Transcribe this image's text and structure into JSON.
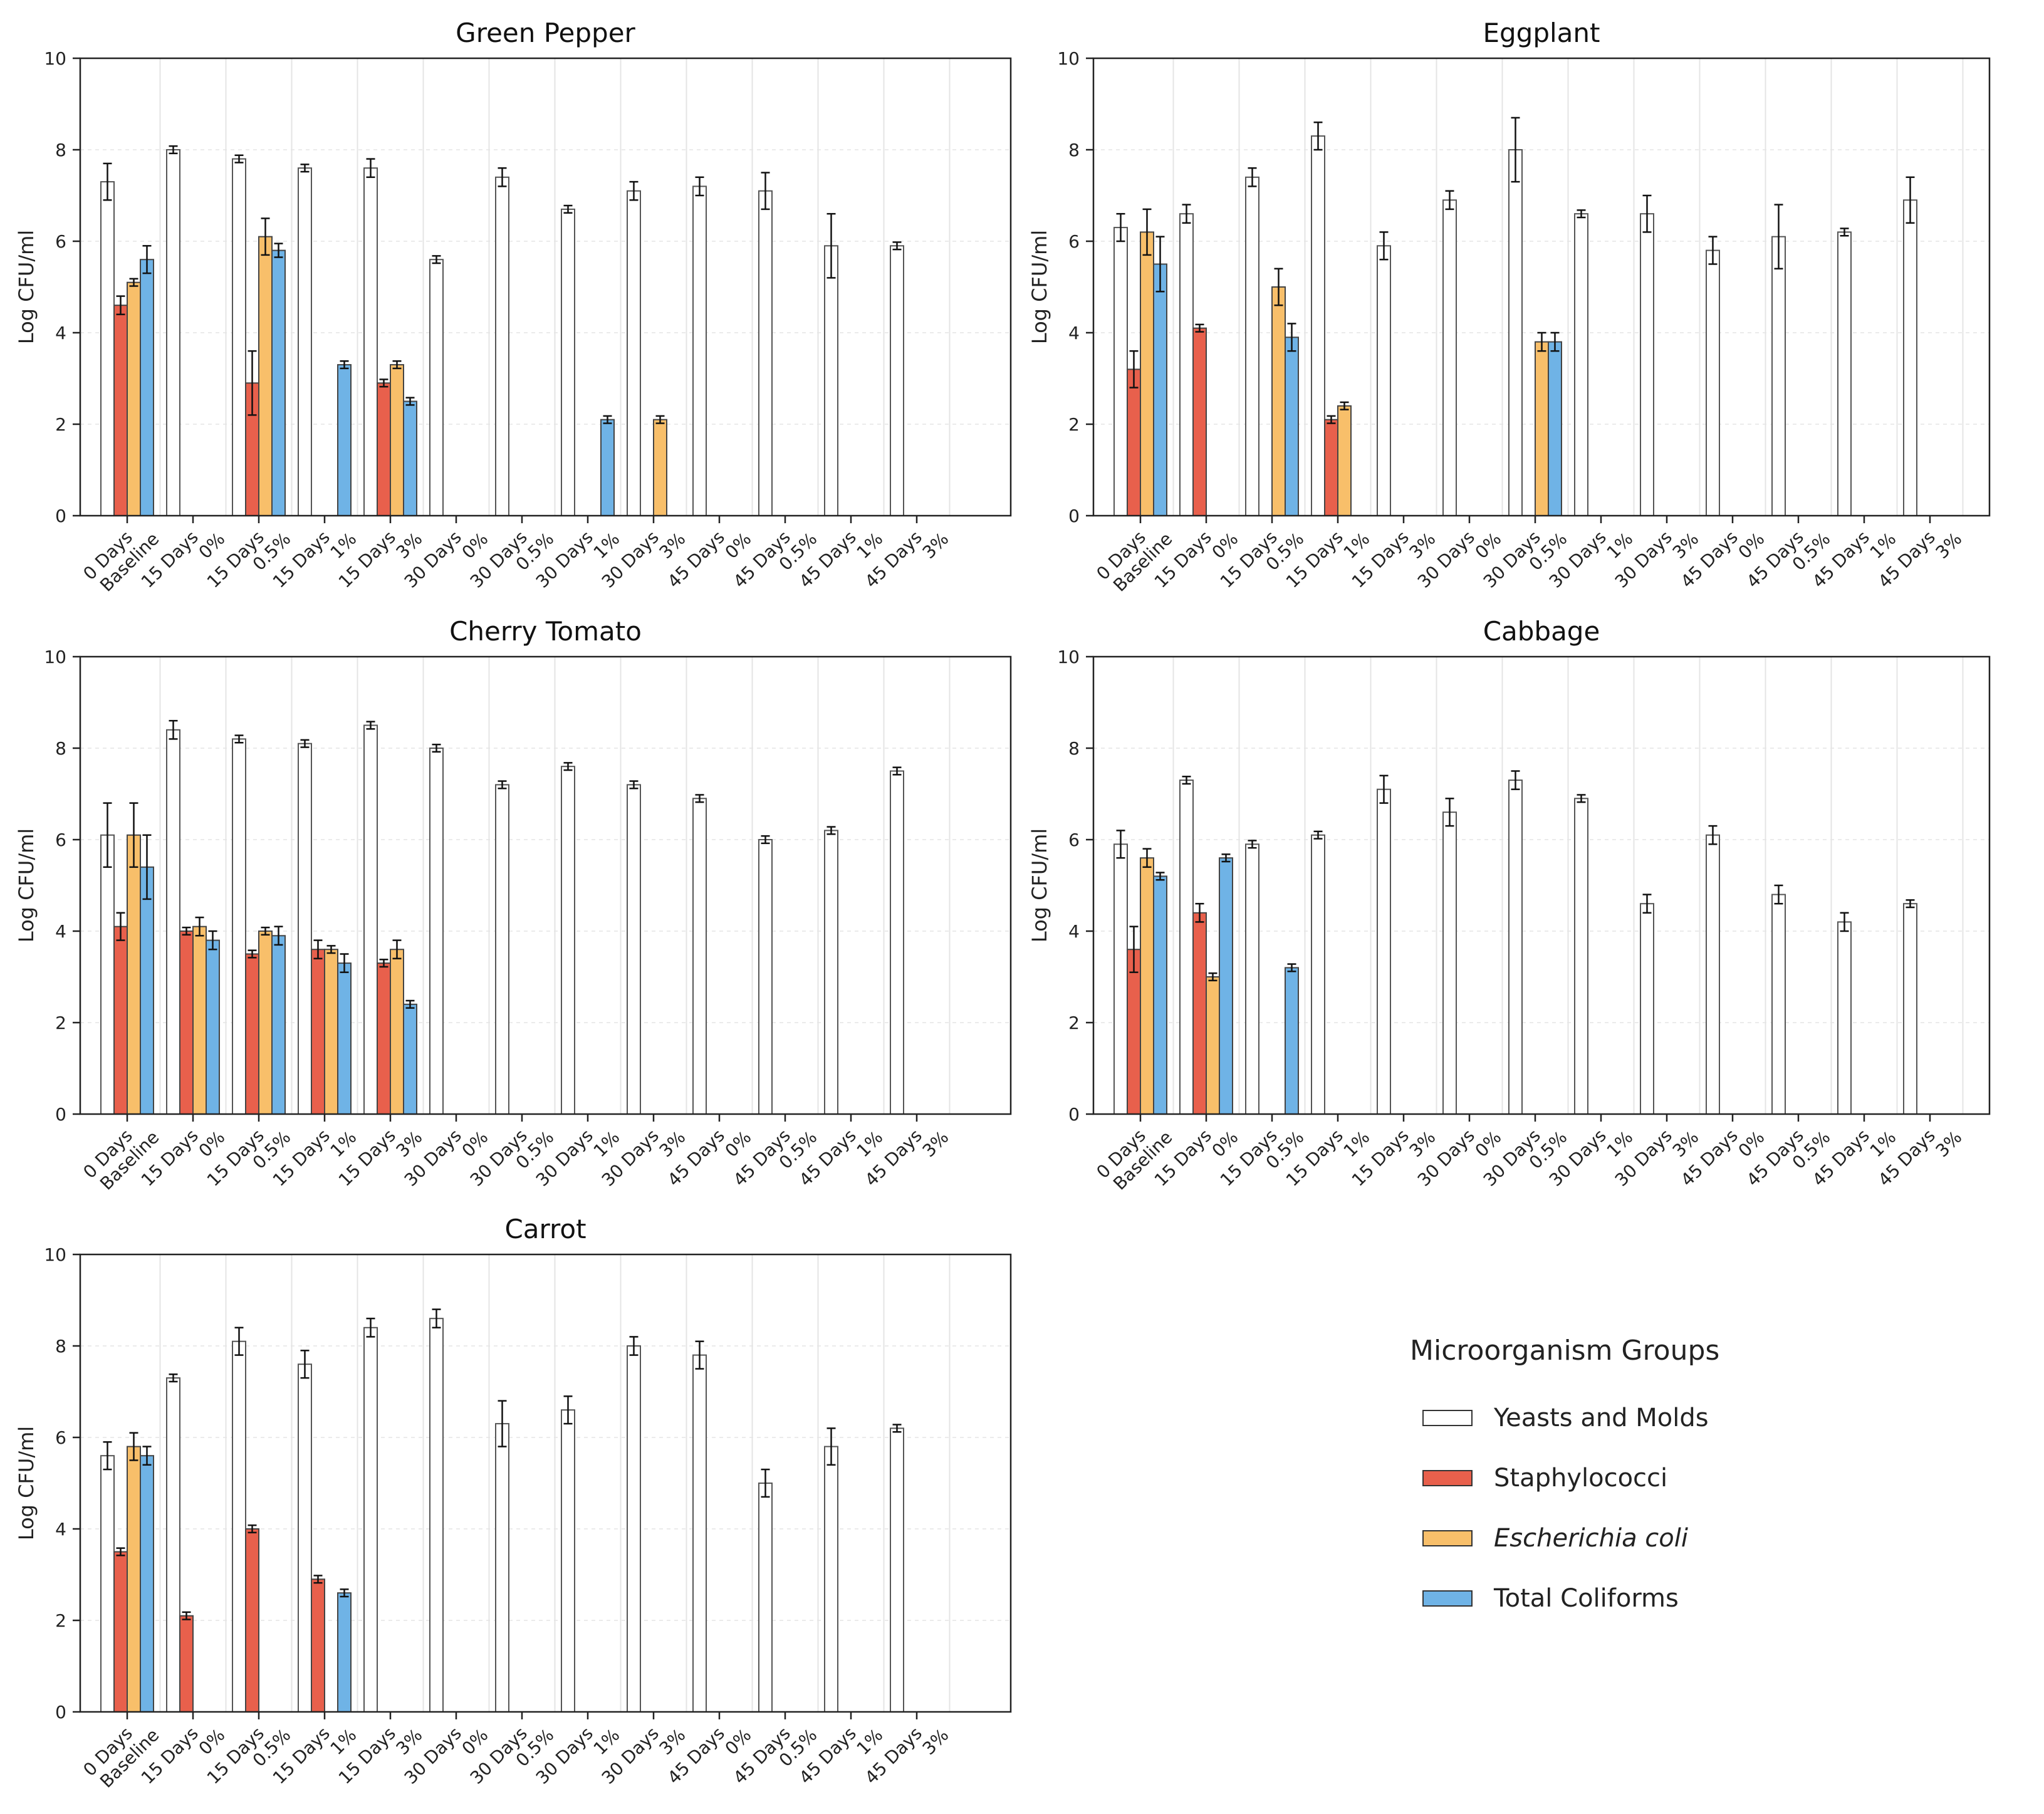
{
  "legend": {
    "title": "Microorganism Groups",
    "items": [
      {
        "key": "ym",
        "label": "Yeasts and Molds",
        "color": "#ffffff",
        "italic": false
      },
      {
        "key": "st",
        "label": "Staphylococci",
        "color": "#e8604c",
        "italic": false
      },
      {
        "key": "ec",
        "label": "Escherichia coli",
        "color": "#f8bf6a",
        "italic": true
      },
      {
        "key": "tc",
        "label": "Total Coliforms",
        "color": "#6fb3e6",
        "italic": false
      }
    ]
  },
  "chart_data": [
    {
      "type": "bar",
      "title": "Green Pepper",
      "ylabel": "Log CFU/ml",
      "ylim": [
        0,
        10
      ],
      "yticks": [
        0,
        2,
        4,
        6,
        8,
        10
      ],
      "categories": [
        "0 Days Baseline",
        "15 Days 0%",
        "15 Days 0.5%",
        "15 Days 1%",
        "15 Days 3%",
        "30 Days 0%",
        "30 Days 0.5%",
        "30 Days 1%",
        "30 Days 3%",
        "45 Days 0%",
        "45 Days 0.5%",
        "45 Days 1%",
        "45 Days 3%"
      ],
      "tick_lines": [
        [
          "0 Days",
          "Baseline"
        ],
        [
          "15 Days",
          "0%"
        ],
        [
          "15 Days",
          "0.5%"
        ],
        [
          "15 Days",
          "1%"
        ],
        [
          "15 Days",
          "3%"
        ],
        [
          "30 Days",
          "0%"
        ],
        [
          "30 Days",
          "0.5%"
        ],
        [
          "30 Days",
          "1%"
        ],
        [
          "30 Days",
          "3%"
        ],
        [
          "45 Days",
          "0%"
        ],
        [
          "45 Days",
          "0.5%"
        ],
        [
          "45 Days",
          "1%"
        ],
        [
          "45 Days",
          "3%"
        ]
      ],
      "series": [
        {
          "name": "Yeasts and Molds",
          "values": [
            7.3,
            8.0,
            7.8,
            7.6,
            7.6,
            5.6,
            7.4,
            6.7,
            7.1,
            7.2,
            7.1,
            5.9,
            5.9
          ],
          "errors": [
            0.4,
            0.08,
            0.08,
            0.08,
            0.2,
            0.08,
            0.2,
            0.08,
            0.2,
            0.2,
            0.4,
            0.7,
            0.08
          ]
        },
        {
          "name": "Staphylococci",
          "values": [
            4.6,
            null,
            2.9,
            null,
            2.9,
            null,
            null,
            null,
            null,
            null,
            null,
            null,
            null
          ],
          "errors": [
            0.2,
            null,
            0.7,
            null,
            0.08,
            null,
            null,
            null,
            null,
            null,
            null,
            null,
            null
          ]
        },
        {
          "name": "Escherichia coli",
          "values": [
            5.1,
            null,
            6.1,
            null,
            3.3,
            null,
            null,
            null,
            2.1,
            null,
            null,
            null,
            null
          ],
          "errors": [
            0.08,
            null,
            0.4,
            null,
            0.08,
            null,
            null,
            null,
            0.08,
            null,
            null,
            null,
            null
          ]
        },
        {
          "name": "Total Coliforms",
          "values": [
            5.6,
            null,
            5.8,
            3.3,
            2.5,
            null,
            null,
            2.1,
            null,
            null,
            null,
            null,
            null
          ],
          "errors": [
            0.3,
            null,
            0.15,
            0.08,
            0.08,
            null,
            null,
            0.08,
            null,
            null,
            null,
            null,
            null
          ]
        }
      ]
    },
    {
      "type": "bar",
      "title": "Eggplant",
      "ylabel": "Log CFU/ml",
      "ylim": [
        0,
        10
      ],
      "yticks": [
        0,
        2,
        4,
        6,
        8,
        10
      ],
      "categories": [
        "0 Days Baseline",
        "15 Days 0%",
        "15 Days 0.5%",
        "15 Days 1%",
        "15 Days 3%",
        "30 Days 0%",
        "30 Days 0.5%",
        "30 Days 1%",
        "30 Days 3%",
        "45 Days 0%",
        "45 Days 0.5%",
        "45 Days 1%",
        "45 Days 3%"
      ],
      "tick_lines": [
        [
          "0 Days",
          "Baseline"
        ],
        [
          "15 Days",
          "0%"
        ],
        [
          "15 Days",
          "0.5%"
        ],
        [
          "15 Days",
          "1%"
        ],
        [
          "15 Days",
          "3%"
        ],
        [
          "30 Days",
          "0%"
        ],
        [
          "30 Days",
          "0.5%"
        ],
        [
          "30 Days",
          "1%"
        ],
        [
          "30 Days",
          "3%"
        ],
        [
          "45 Days",
          "0%"
        ],
        [
          "45 Days",
          "0.5%"
        ],
        [
          "45 Days",
          "1%"
        ],
        [
          "45 Days",
          "3%"
        ]
      ],
      "series": [
        {
          "name": "Yeasts and Molds",
          "values": [
            6.3,
            6.6,
            7.4,
            8.3,
            5.9,
            6.9,
            8.0,
            6.6,
            6.6,
            5.8,
            6.1,
            6.2,
            6.9
          ],
          "errors": [
            0.3,
            0.2,
            0.2,
            0.3,
            0.3,
            0.2,
            0.7,
            0.08,
            0.4,
            0.3,
            0.7,
            0.08,
            0.5
          ]
        },
        {
          "name": "Staphylococci",
          "values": [
            3.2,
            4.1,
            null,
            2.1,
            null,
            null,
            null,
            null,
            null,
            null,
            null,
            null,
            null
          ],
          "errors": [
            0.4,
            0.08,
            null,
            0.08,
            null,
            null,
            null,
            null,
            null,
            null,
            null,
            null,
            null
          ]
        },
        {
          "name": "Escherichia coli",
          "values": [
            6.2,
            null,
            5.0,
            2.4,
            null,
            null,
            3.8,
            null,
            null,
            null,
            null,
            null,
            null
          ],
          "errors": [
            0.5,
            null,
            0.4,
            0.08,
            null,
            null,
            0.2,
            null,
            null,
            null,
            null,
            null,
            null
          ]
        },
        {
          "name": "Total Coliforms",
          "values": [
            5.5,
            null,
            3.9,
            null,
            null,
            null,
            3.8,
            null,
            null,
            null,
            null,
            null,
            null
          ],
          "errors": [
            0.6,
            null,
            0.3,
            null,
            null,
            null,
            0.2,
            null,
            null,
            null,
            null,
            null,
            null
          ]
        }
      ]
    },
    {
      "type": "bar",
      "title": "Cherry Tomato",
      "ylabel": "Log CFU/ml",
      "ylim": [
        0,
        10
      ],
      "yticks": [
        0,
        2,
        4,
        6,
        8,
        10
      ],
      "categories": [
        "0 Days Baseline",
        "15 Days 0%",
        "15 Days 0.5%",
        "15 Days 1%",
        "15 Days 3%",
        "30 Days 0%",
        "30 Days 0.5%",
        "30 Days 1%",
        "30 Days 3%",
        "45 Days 0%",
        "45 Days 0.5%",
        "45 Days 1%",
        "45 Days 3%"
      ],
      "tick_lines": [
        [
          "0 Days",
          "Baseline"
        ],
        [
          "15 Days",
          "0%"
        ],
        [
          "15 Days",
          "0.5%"
        ],
        [
          "15 Days",
          "1%"
        ],
        [
          "15 Days",
          "3%"
        ],
        [
          "30 Days",
          "0%"
        ],
        [
          "30 Days",
          "0.5%"
        ],
        [
          "30 Days",
          "1%"
        ],
        [
          "30 Days",
          "3%"
        ],
        [
          "45 Days",
          "0%"
        ],
        [
          "45 Days",
          "0.5%"
        ],
        [
          "45 Days",
          "1%"
        ],
        [
          "45 Days",
          "3%"
        ]
      ],
      "series": [
        {
          "name": "Yeasts and Molds",
          "values": [
            6.1,
            8.4,
            8.2,
            8.1,
            8.5,
            8.0,
            7.2,
            7.6,
            7.2,
            6.9,
            6.0,
            6.2,
            7.5
          ],
          "errors": [
            0.7,
            0.2,
            0.08,
            0.08,
            0.08,
            0.08,
            0.08,
            0.08,
            0.08,
            0.08,
            0.08,
            0.08,
            0.08
          ]
        },
        {
          "name": "Staphylococci",
          "values": [
            4.1,
            4.0,
            3.5,
            3.6,
            3.3,
            null,
            null,
            null,
            null,
            null,
            null,
            null,
            null
          ],
          "errors": [
            0.3,
            0.08,
            0.08,
            0.2,
            0.08,
            null,
            null,
            null,
            null,
            null,
            null,
            null,
            null
          ]
        },
        {
          "name": "Escherichia coli",
          "values": [
            6.1,
            4.1,
            4.0,
            3.6,
            3.6,
            null,
            null,
            null,
            null,
            null,
            null,
            null,
            null
          ],
          "errors": [
            0.7,
            0.2,
            0.08,
            0.08,
            0.2,
            null,
            null,
            null,
            null,
            null,
            null,
            null,
            null
          ]
        },
        {
          "name": "Total Coliforms",
          "values": [
            5.4,
            3.8,
            3.9,
            3.3,
            2.4,
            null,
            null,
            null,
            null,
            null,
            null,
            null,
            null
          ],
          "errors": [
            0.7,
            0.2,
            0.2,
            0.2,
            0.08,
            null,
            null,
            null,
            null,
            null,
            null,
            null,
            null
          ]
        }
      ]
    },
    {
      "type": "bar",
      "title": "Cabbage",
      "ylabel": "Log CFU/ml",
      "ylim": [
        0,
        10
      ],
      "yticks": [
        0,
        2,
        4,
        6,
        8,
        10
      ],
      "categories": [
        "0 Days Baseline",
        "15 Days 0%",
        "15 Days 0.5%",
        "15 Days 1%",
        "15 Days 3%",
        "30 Days 0%",
        "30 Days 0.5%",
        "30 Days 1%",
        "30 Days 3%",
        "45 Days 0%",
        "45 Days 0.5%",
        "45 Days 1%",
        "45 Days 3%"
      ],
      "tick_lines": [
        [
          "0 Days",
          "Baseline"
        ],
        [
          "15 Days",
          "0%"
        ],
        [
          "15 Days",
          "0.5%"
        ],
        [
          "15 Days",
          "1%"
        ],
        [
          "15 Days",
          "3%"
        ],
        [
          "30 Days",
          "0%"
        ],
        [
          "30 Days",
          "0.5%"
        ],
        [
          "30 Days",
          "1%"
        ],
        [
          "30 Days",
          "3%"
        ],
        [
          "45 Days",
          "0%"
        ],
        [
          "45 Days",
          "0.5%"
        ],
        [
          "45 Days",
          "1%"
        ],
        [
          "45 Days",
          "3%"
        ]
      ],
      "series": [
        {
          "name": "Yeasts and Molds",
          "values": [
            5.9,
            7.3,
            5.9,
            6.1,
            7.1,
            6.6,
            7.3,
            6.9,
            4.6,
            6.1,
            4.8,
            4.2,
            4.6
          ],
          "errors": [
            0.3,
            0.08,
            0.08,
            0.08,
            0.3,
            0.3,
            0.2,
            0.08,
            0.2,
            0.2,
            0.2,
            0.2,
            0.08
          ]
        },
        {
          "name": "Staphylococci",
          "values": [
            3.6,
            4.4,
            null,
            null,
            null,
            null,
            null,
            null,
            null,
            null,
            null,
            null,
            null
          ],
          "errors": [
            0.5,
            0.2,
            null,
            null,
            null,
            null,
            null,
            null,
            null,
            null,
            null,
            null,
            null
          ]
        },
        {
          "name": "Escherichia coli",
          "values": [
            5.6,
            3.0,
            null,
            null,
            null,
            null,
            null,
            null,
            null,
            null,
            null,
            null,
            null
          ],
          "errors": [
            0.2,
            0.08,
            null,
            null,
            null,
            null,
            null,
            null,
            null,
            null,
            null,
            null,
            null
          ]
        },
        {
          "name": "Total Coliforms",
          "values": [
            5.2,
            5.6,
            3.2,
            null,
            null,
            null,
            null,
            null,
            null,
            null,
            null,
            null,
            null
          ],
          "errors": [
            0.08,
            0.08,
            0.08,
            null,
            null,
            null,
            null,
            null,
            null,
            null,
            null,
            null,
            null
          ]
        }
      ]
    },
    {
      "type": "bar",
      "title": "Carrot",
      "ylabel": "Log CFU/ml",
      "ylim": [
        0,
        10
      ],
      "yticks": [
        0,
        2,
        4,
        6,
        8,
        10
      ],
      "categories": [
        "0 Days Baseline",
        "15 Days 0%",
        "15 Days 0.5%",
        "15 Days 1%",
        "15 Days 3%",
        "30 Days 0%",
        "30 Days 0.5%",
        "30 Days 1%",
        "30 Days 3%",
        "45 Days 0%",
        "45 Days 0.5%",
        "45 Days 1%",
        "45 Days 3%"
      ],
      "tick_lines": [
        [
          "0 Days",
          "Baseline"
        ],
        [
          "15 Days",
          "0%"
        ],
        [
          "15 Days",
          "0.5%"
        ],
        [
          "15 Days",
          "1%"
        ],
        [
          "15 Days",
          "3%"
        ],
        [
          "30 Days",
          "0%"
        ],
        [
          "30 Days",
          "0.5%"
        ],
        [
          "30 Days",
          "1%"
        ],
        [
          "30 Days",
          "3%"
        ],
        [
          "45 Days",
          "0%"
        ],
        [
          "45 Days",
          "0.5%"
        ],
        [
          "45 Days",
          "1%"
        ],
        [
          "45 Days",
          "3%"
        ]
      ],
      "series": [
        {
          "name": "Yeasts and Molds",
          "values": [
            5.6,
            7.3,
            8.1,
            7.6,
            8.4,
            8.6,
            6.3,
            6.6,
            8.0,
            7.8,
            5.0,
            5.8,
            6.2
          ],
          "errors": [
            0.3,
            0.08,
            0.3,
            0.3,
            0.2,
            0.2,
            0.5,
            0.3,
            0.2,
            0.3,
            0.3,
            0.4,
            0.08
          ]
        },
        {
          "name": "Staphylococci",
          "values": [
            3.5,
            2.1,
            4.0,
            2.9,
            null,
            null,
            null,
            null,
            null,
            null,
            null,
            null,
            null
          ],
          "errors": [
            0.08,
            0.08,
            0.08,
            0.08,
            null,
            null,
            null,
            null,
            null,
            null,
            null,
            null,
            null
          ]
        },
        {
          "name": "Escherichia coli",
          "values": [
            5.8,
            null,
            null,
            null,
            null,
            null,
            null,
            null,
            null,
            null,
            null,
            null,
            null
          ],
          "errors": [
            0.3,
            null,
            null,
            null,
            null,
            null,
            null,
            null,
            null,
            null,
            null,
            null,
            null
          ]
        },
        {
          "name": "Total Coliforms",
          "values": [
            5.6,
            null,
            null,
            2.6,
            null,
            null,
            null,
            null,
            null,
            null,
            null,
            null,
            null
          ],
          "errors": [
            0.2,
            null,
            null,
            0.08,
            null,
            null,
            null,
            null,
            null,
            null,
            null,
            null,
            null
          ]
        }
      ]
    }
  ]
}
